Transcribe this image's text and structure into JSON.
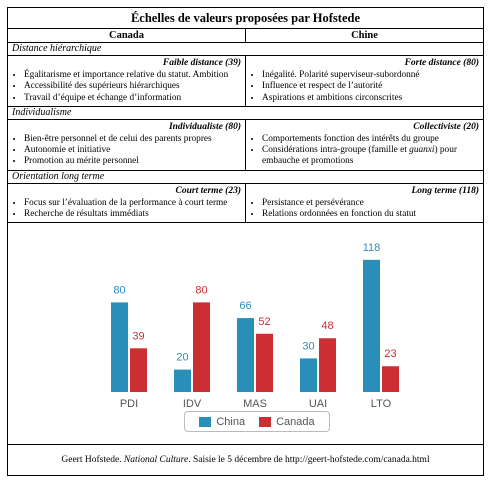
{
  "title": "Échelles de valeurs proposées par Hofstede",
  "columns": [
    "Canada",
    "Chine"
  ],
  "sections": [
    {
      "name": "Distance hiérarchique",
      "canada": {
        "heading": "Faible distance (39)",
        "items": [
          "Égalitarisme et importance relative du statut. Ambition",
          "Accessibilité des supérieurs hiérarchiques",
          "Travail d’équipe et échange d’information"
        ]
      },
      "chine": {
        "heading": "Forte distance (80)",
        "items": [
          "Inégalité. Polarité superviseur-subordonné",
          "Influence et respect de l’autorité",
          "Aspirations et ambitions circonscrites"
        ]
      }
    },
    {
      "name": "Individualisme",
      "canada": {
        "heading": "Individualiste (80)",
        "items": [
          "Bien-être personnel et de celui des parents propres",
          "Autonomie et initiative",
          "Promotion au mérite personnel"
        ]
      },
      "chine": {
        "heading": "Collectiviste (20)",
        "items": [
          "Comportements fonction des intérêts du groupe",
          "Considérations intra-groupe (famille et guanxi) pour embauche et promotions"
        ]
      }
    },
    {
      "name": "Orientation long terme",
      "canada": {
        "heading": "Court terme (23)",
        "items": [
          "Focus sur l’évaluation de la performance à court terme",
          "Recherche de résultats immédiats"
        ]
      },
      "chine": {
        "heading": "Long terme (118)",
        "items": [
          "Persistance et persévérance",
          "Relations ordonnées en fonction du statut"
        ]
      }
    }
  ],
  "chart_data": {
    "type": "bar",
    "categories": [
      "PDI",
      "IDV",
      "MAS",
      "UAI",
      "LTO"
    ],
    "series": [
      {
        "name": "China",
        "values": [
          80,
          20,
          66,
          30,
          118
        ],
        "color": "#2a8fb8"
      },
      {
        "name": "Canada",
        "values": [
          39,
          80,
          52,
          48,
          23
        ],
        "color": "#cc2f33"
      }
    ],
    "ylim": [
      0,
      125
    ],
    "grid": false,
    "legend": "bottom"
  },
  "footer": {
    "before": "Geert Hofstede. ",
    "italic": "National Culture",
    "after": ". Saisie le 5 décembre de http://geert-hofstede.com/canada.html"
  }
}
